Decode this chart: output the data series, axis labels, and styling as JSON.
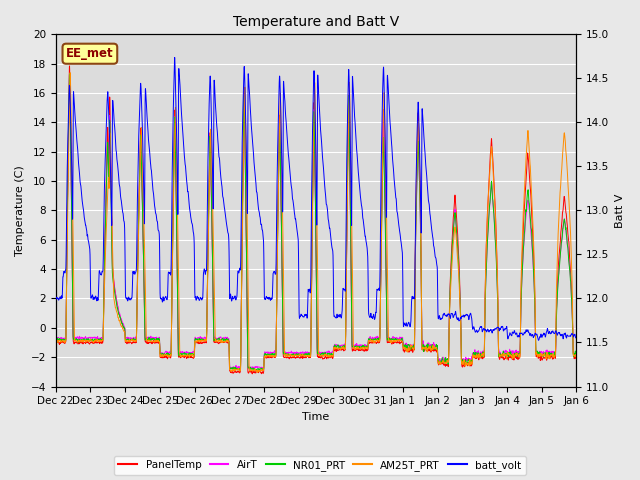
{
  "title": "Temperature and Batt V",
  "xlabel": "Time",
  "ylabel_left": "Temperature (C)",
  "ylabel_right": "Batt V",
  "annotation_text": "EE_met",
  "annotation_color": "#8B0000",
  "annotation_bg": "#FFFF99",
  "annotation_border": "#8B4513",
  "ylim_left": [
    -4,
    20
  ],
  "ylim_right": [
    11.0,
    15.0
  ],
  "yticks_left": [
    -4,
    -2,
    0,
    2,
    4,
    6,
    8,
    10,
    12,
    14,
    16,
    18,
    20
  ],
  "yticks_right": [
    11.0,
    11.5,
    12.0,
    12.5,
    13.0,
    13.5,
    14.0,
    14.5,
    15.0
  ],
  "xtick_labels": [
    "Dec 22",
    "Dec 23",
    "Dec 24",
    "Dec 25",
    "Dec 26",
    "Dec 27",
    "Dec 28",
    "Dec 29",
    "Dec 30",
    "Dec 31",
    "Jan 1",
    "Jan 2",
    "Jan 3",
    "Jan 4",
    "Jan 5",
    "Jan 6"
  ],
  "colors": {
    "PanelTemp": "#FF0000",
    "AirT": "#FF00FF",
    "NR01_PRT": "#00CC00",
    "AM25T_PRT": "#FF8C00",
    "batt_volt": "#0000FF"
  },
  "legend_entries": [
    "PanelTemp",
    "AirT",
    "NR01_PRT",
    "AM25T_PRT",
    "batt_volt"
  ],
  "background_color": "#E8E8E8",
  "plot_bg_color": "#DCDCDC",
  "grid_color": "#FFFFFF",
  "num_days": 15,
  "points_per_day": 288,
  "figsize": [
    6.4,
    4.8
  ],
  "dpi": 100
}
